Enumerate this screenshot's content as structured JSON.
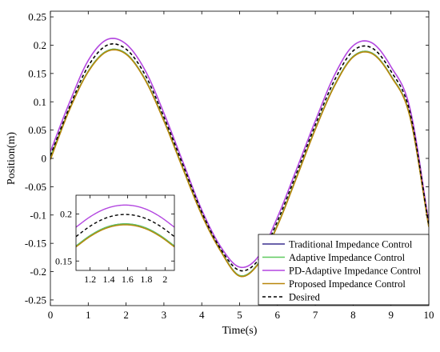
{
  "chart_data": [
    {
      "type": "line",
      "title": "",
      "xlabel": "Time(s)",
      "ylabel": "Position(m)",
      "xlim": [
        0,
        10
      ],
      "ylim": [
        -0.26,
        0.26
      ],
      "xticks": [
        0,
        1,
        2,
        3,
        4,
        5,
        6,
        7,
        8,
        9,
        10
      ],
      "yticks": [
        -0.25,
        -0.2,
        -0.15,
        -0.1,
        -0.05,
        0,
        0.05,
        0.1,
        0.15,
        0.2,
        0.25
      ],
      "xtick_labels": [
        "0",
        "1",
        "2",
        "3",
        "4",
        "5",
        "6",
        "7",
        "8",
        "9",
        "10"
      ],
      "ytick_labels": [
        "-0.25",
        "-0.2",
        "-0.15",
        "-0.1",
        "-0.05",
        "0",
        "0.05",
        "0.1",
        "0.15",
        "0.2",
        "0.25"
      ],
      "grid": false,
      "legend_position": "bottom-right",
      "x": [
        0,
        0.5,
        1,
        1.5,
        2,
        2.5,
        3,
        3.5,
        4,
        4.5,
        5,
        5.5,
        6,
        6.5,
        7,
        7.5,
        8,
        8.5,
        9,
        9.5,
        10
      ],
      "series": [
        {
          "name": "Traditional Impedance Control",
          "color": "#3a2f8f",
          "dash": "solid",
          "values": [
            0.002,
            0.086,
            0.154,
            0.19,
            0.185,
            0.14,
            0.067,
            -0.017,
            -0.099,
            -0.163,
            -0.207,
            -0.185,
            -0.118,
            -0.034,
            0.052,
            0.128,
            0.18,
            0.186,
            0.146,
            0.075,
            -0.12
          ]
        },
        {
          "name": "Adaptive Impedance Control",
          "color": "#5fc95f",
          "dash": "solid",
          "values": [
            0.002,
            0.086,
            0.154,
            0.19,
            0.185,
            0.14,
            0.067,
            -0.017,
            -0.099,
            -0.163,
            -0.207,
            -0.185,
            -0.118,
            -0.034,
            0.052,
            0.128,
            0.18,
            0.186,
            0.146,
            0.075,
            -0.12
          ]
        },
        {
          "name": "PD-Adaptive Impedance Control",
          "color": "#b347e0",
          "dash": "solid",
          "values": [
            0.012,
            0.098,
            0.173,
            0.21,
            0.202,
            0.156,
            0.08,
            -0.006,
            -0.091,
            -0.156,
            -0.192,
            -0.173,
            -0.104,
            -0.02,
            0.066,
            0.146,
            0.199,
            0.204,
            0.162,
            0.089,
            -0.113
          ]
        },
        {
          "name": "Proposed Impedance Control",
          "color": "#b8860b",
          "dash": "solid",
          "values": [
            -0.002,
            0.085,
            0.153,
            0.189,
            0.184,
            0.139,
            0.066,
            -0.018,
            -0.1,
            -0.164,
            -0.208,
            -0.186,
            -0.119,
            -0.035,
            0.051,
            0.127,
            0.179,
            0.185,
            0.145,
            0.074,
            -0.121
          ]
        },
        {
          "name": "Desired",
          "color": "#000000",
          "dash": "dashed",
          "values": [
            0.005,
            0.09,
            0.163,
            0.2,
            0.193,
            0.148,
            0.073,
            -0.011,
            -0.095,
            -0.16,
            -0.198,
            -0.179,
            -0.111,
            -0.027,
            0.059,
            0.137,
            0.19,
            0.195,
            0.154,
            0.082,
            -0.117
          ]
        }
      ]
    },
    {
      "type": "line",
      "title": "",
      "xlabel": "",
      "ylabel": "",
      "xlim": [
        1.05,
        2.1
      ],
      "ylim": [
        0.14,
        0.22
      ],
      "xticks": [
        1.2,
        1.4,
        1.6,
        1.8,
        2
      ],
      "yticks": [
        0.15,
        0.2
      ],
      "xtick_labels": [
        "1.2",
        "1.4",
        "1.6",
        "1.8",
        "2"
      ],
      "ytick_labels": [
        "0.15",
        "0.2"
      ],
      "grid": false,
      "x": [
        1.05,
        1.2,
        1.35,
        1.5,
        1.65,
        1.8,
        1.95,
        2.1
      ],
      "series": [
        {
          "color": "#3a2f8f",
          "dash": "solid",
          "values": [
            0.166,
            0.177,
            0.185,
            0.189,
            0.189,
            0.185,
            0.177,
            0.166
          ]
        },
        {
          "color": "#5fc95f",
          "dash": "solid",
          "values": [
            0.166,
            0.177,
            0.185,
            0.189,
            0.189,
            0.185,
            0.177,
            0.166
          ]
        },
        {
          "color": "#b347e0",
          "dash": "solid",
          "values": [
            0.186,
            0.197,
            0.205,
            0.209,
            0.209,
            0.205,
            0.197,
            0.186
          ]
        },
        {
          "color": "#b8860b",
          "dash": "solid",
          "values": [
            0.165,
            0.176,
            0.184,
            0.188,
            0.188,
            0.184,
            0.176,
            0.165
          ]
        },
        {
          "color": "#000000",
          "dash": "dashed",
          "values": [
            0.176,
            0.187,
            0.195,
            0.199,
            0.199,
            0.195,
            0.187,
            0.176
          ]
        }
      ]
    }
  ]
}
